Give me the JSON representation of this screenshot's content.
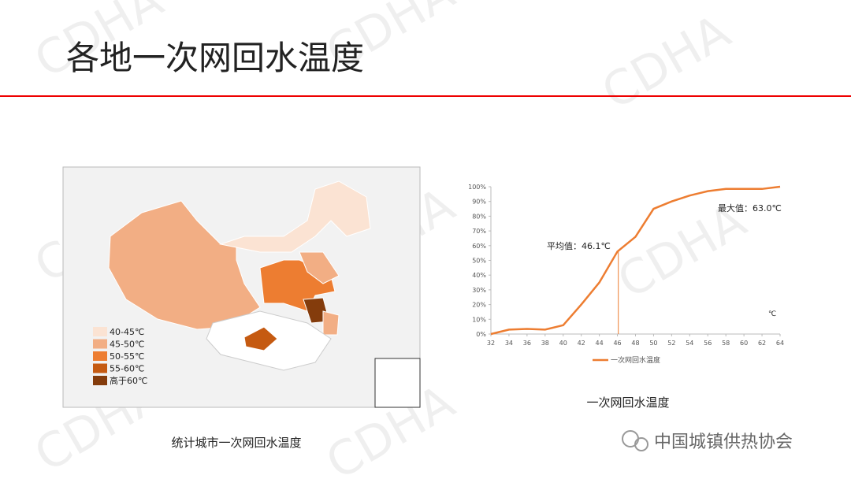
{
  "title": "各地一次网回水温度",
  "watermark": "CDHA",
  "map": {
    "legend": [
      {
        "label": "40-45℃",
        "color": "#fbe3d3"
      },
      {
        "label": "45-50℃",
        "color": "#f2ae84"
      },
      {
        "label": "50-55℃",
        "color": "#ed7d31"
      },
      {
        "label": "55-60℃",
        "color": "#c55a11"
      },
      {
        "label": "高于60℃",
        "color": "#843c0c"
      }
    ],
    "caption": "统计城市一次网回水温度"
  },
  "chart_data": {
    "type": "line",
    "x": [
      32,
      34,
      36,
      38,
      40,
      42,
      44,
      46,
      48,
      50,
      52,
      54,
      56,
      58,
      60,
      62,
      64
    ],
    "series": [
      {
        "name": "一次网回水温度",
        "color": "#ed7d31",
        "values": [
          0,
          3,
          3.5,
          3,
          6,
          20,
          35,
          56,
          66,
          85,
          90,
          94,
          97,
          98.5,
          98.5,
          98.5,
          100
        ]
      }
    ],
    "xlim": [
      32,
      64
    ],
    "xticks": [
      32,
      34,
      36,
      38,
      40,
      42,
      44,
      46,
      48,
      50,
      52,
      54,
      56,
      58,
      60,
      62,
      64
    ],
    "ylim": [
      0,
      100
    ],
    "yticks": [
      {
        "value": 0,
        "label": "0%"
      },
      {
        "value": 10,
        "label": "10%"
      },
      {
        "value": 20,
        "label": "20%"
      },
      {
        "value": 30,
        "label": "30%"
      },
      {
        "value": 40,
        "label": "40%"
      },
      {
        "value": 50,
        "label": "50%"
      },
      {
        "value": 60,
        "label": "60%"
      },
      {
        "value": 70,
        "label": "70%"
      },
      {
        "value": 80,
        "label": "80%"
      },
      {
        "value": 90,
        "label": "90%"
      },
      {
        "value": 100,
        "label": "100%"
      }
    ],
    "annotations": [
      {
        "text": "平均值：46.1℃",
        "x": 46.1
      },
      {
        "text": "最大值：63.0℃"
      }
    ],
    "x_unit": "℃"
  },
  "chart_caption": "一次网回水温度",
  "footer": "中国城镇供热协会"
}
